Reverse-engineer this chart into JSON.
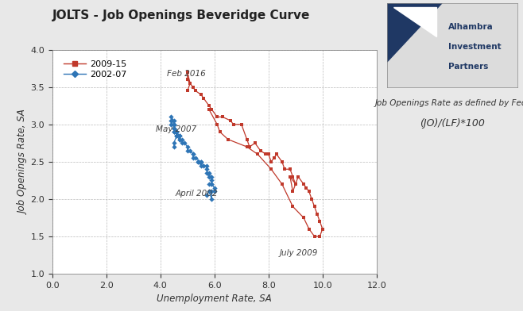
{
  "title": "JOLTS - Job Openings Beveridge Curve",
  "xlabel": "Unemployment Rate, SA",
  "ylabel": "Job Openings Rate, SA",
  "xlim": [
    0.0,
    12.0
  ],
  "ylim": [
    1.0,
    4.0
  ],
  "xticks": [
    0.0,
    2.0,
    4.0,
    6.0,
    8.0,
    10.0,
    12.0
  ],
  "yticks": [
    1.0,
    1.5,
    2.0,
    2.5,
    3.0,
    3.5,
    4.0
  ],
  "color_red": "#C0392B",
  "color_blue": "#2E75B6",
  "legend_red": "2009-15",
  "legend_blue": "2002-07",
  "fig_bg": "#E8E8E8",
  "plot_bg": "#FFFFFF",
  "annotation_formula_line1": "Job Openings Rate as defined by Fed;",
  "annotation_formula_line2": "(JO)/(LF)*100",
  "annotation_feb2016": "Feb 2016",
  "annotation_may2007": "May 2007",
  "annotation_april2002": "April 2002",
  "annotation_july2009": "July 2009",
  "logo_bg": "#E8E8E8",
  "logo_text1": "Alhambra",
  "logo_text2": "Investment",
  "logo_text3": "Partners",
  "logo_triangle_color": "#1F3864",
  "series_red_u": [
    5.8,
    6.1,
    6.2,
    6.5,
    7.2,
    7.6,
    8.1,
    8.5,
    8.9,
    9.3,
    9.5,
    9.7,
    9.9,
    10.0,
    9.9,
    9.8,
    9.7,
    9.6,
    9.5,
    9.4,
    9.3,
    9.1,
    9.0,
    8.9,
    8.8,
    8.8,
    9.0,
    8.9,
    8.8,
    8.6,
    8.5,
    8.3,
    8.2,
    8.1,
    8.0,
    7.9,
    7.7,
    7.5,
    7.3,
    7.2,
    7.0,
    6.7,
    6.6,
    6.3,
    6.1,
    5.9,
    5.8,
    5.6,
    5.5,
    5.3,
    5.2,
    5.1,
    5.0,
    5.0,
    5.1,
    5.0
  ],
  "series_red_jo": [
    3.2,
    3.0,
    2.9,
    2.8,
    2.7,
    2.6,
    2.4,
    2.2,
    1.9,
    1.75,
    1.6,
    1.5,
    1.5,
    1.6,
    1.7,
    1.8,
    1.9,
    2.0,
    2.1,
    2.15,
    2.2,
    2.3,
    2.2,
    2.1,
    2.3,
    2.3,
    2.2,
    2.3,
    2.4,
    2.4,
    2.5,
    2.6,
    2.55,
    2.5,
    2.6,
    2.6,
    2.65,
    2.75,
    2.7,
    2.8,
    3.0,
    3.0,
    3.05,
    3.1,
    3.1,
    3.2,
    3.25,
    3.35,
    3.4,
    3.45,
    3.5,
    3.55,
    3.6,
    3.7,
    3.55,
    3.45
  ],
  "series_blue_u": [
    5.7,
    5.8,
    5.9,
    5.9,
    6.0,
    6.0,
    5.9,
    5.8,
    5.9,
    5.9,
    5.9,
    5.8,
    5.7,
    5.8,
    5.7,
    5.7,
    5.6,
    5.5,
    5.4,
    5.4,
    5.5,
    5.5,
    5.3,
    5.2,
    5.2,
    5.2,
    5.1,
    5.0,
    5.0,
    4.9,
    4.8,
    4.8,
    4.7,
    4.7,
    4.6,
    4.6,
    4.5,
    4.5,
    4.5,
    4.6,
    4.5,
    4.5,
    4.4,
    4.4,
    4.5,
    4.5,
    4.6,
    4.7,
    4.7,
    4.6,
    4.5,
    4.5,
    4.4,
    4.5,
    4.6,
    4.5,
    4.5
  ],
  "series_blue_jo": [
    2.05,
    2.1,
    2.0,
    2.1,
    2.1,
    2.15,
    2.2,
    2.2,
    2.2,
    2.25,
    2.3,
    2.35,
    2.35,
    2.3,
    2.4,
    2.45,
    2.45,
    2.5,
    2.5,
    2.5,
    2.45,
    2.5,
    2.55,
    2.55,
    2.6,
    2.6,
    2.65,
    2.65,
    2.7,
    2.75,
    2.75,
    2.8,
    2.8,
    2.85,
    2.85,
    2.9,
    2.9,
    2.9,
    2.95,
    2.9,
    2.95,
    3.0,
    3.0,
    3.05,
    2.95,
    2.9,
    2.9,
    2.85,
    2.8,
    2.85,
    3.0,
    3.05,
    3.1,
    3.0,
    2.85,
    2.75,
    2.7
  ]
}
